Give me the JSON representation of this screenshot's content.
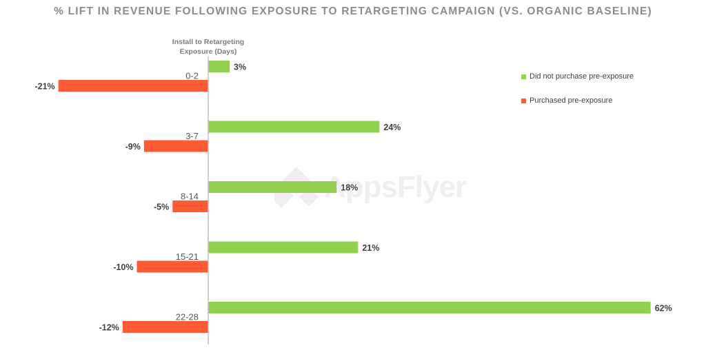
{
  "title": "% LIFT IN REVENUE FOLLOWING EXPOSURE TO RETARGETING CAMPAIGN (VS. ORGANIC BASELINE)",
  "watermark_text": "AppsFlyer",
  "colors": {
    "green": "#92d050",
    "red": "#ff5a36",
    "axis": "#bfbfbf",
    "title": "#8c8c8c"
  },
  "chart_data": {
    "type": "bar",
    "orientation": "horizontal",
    "title": "% LIFT IN REVENUE FOLLOWING EXPOSURE TO RETARGETING CAMPAIGN (VS. ORGANIC BASELINE)",
    "ylabel": "Install to Retargeting Exposure (Days)",
    "xlabel": "",
    "categories": [
      "0-2",
      "3-7",
      "8-14",
      "15-21",
      "22-28"
    ],
    "series": [
      {
        "name": "Did not purchase pre-exposure",
        "color": "#92d050",
        "values": [
          3,
          24,
          18,
          21,
          62
        ]
      },
      {
        "name": "Purchased pre-exposure",
        "color": "#ff5a36",
        "values": [
          -21,
          -9,
          -5,
          -10,
          -12
        ]
      }
    ],
    "value_suffix": "%",
    "xlim": [
      -21,
      62
    ],
    "legend_position": "top-right",
    "grid": false
  }
}
